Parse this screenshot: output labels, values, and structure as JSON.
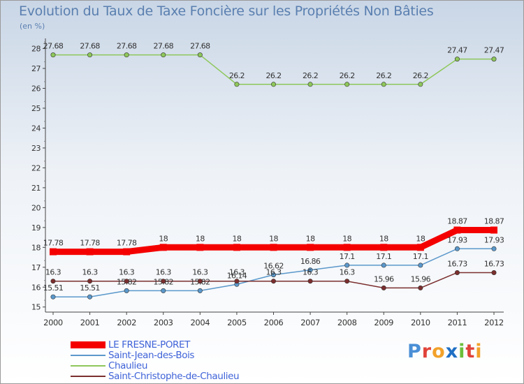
{
  "chart": {
    "title": "Evolution du Taux de Taxe Foncière sur les Propriétés Non Bâties",
    "unit_label": "(en %)"
  },
  "brand": {
    "name": "Proxiti"
  },
  "chart_data": {
    "type": "line",
    "title": "Evolution du Taux de Taxe Foncière sur les Propriétés Non Bâties",
    "ylabel": "(en %)",
    "xlabel": "",
    "x": [
      "2000",
      "2001",
      "2002",
      "2003",
      "2004",
      "2005",
      "2006",
      "2007",
      "2008",
      "2009",
      "2010",
      "2011",
      "2012"
    ],
    "y_ticks": [
      15,
      16,
      17,
      18,
      19,
      20,
      21,
      22,
      23,
      24,
      25,
      26,
      27,
      28
    ],
    "ylim": [
      14.85,
      28.3
    ],
    "grid": false,
    "legend_position": "bottom-left",
    "series": [
      {
        "name": "Chaulieu",
        "color": "#8ec75a",
        "line_weight": "thin",
        "values": [
          27.68,
          27.68,
          27.68,
          27.68,
          27.68,
          26.2,
          26.2,
          26.2,
          26.2,
          26.2,
          26.2,
          27.47,
          27.47
        ],
        "labels": [
          "27.68",
          "27.68",
          "27.68",
          "27.68",
          "27.68",
          "26.2",
          "26.2",
          "26.2",
          "26.2",
          "26.2",
          "26.2",
          "27.47",
          "27.47"
        ]
      },
      {
        "name": "LE FRESNE-PORET",
        "color": "#f50000",
        "line_weight": "thick",
        "values": [
          17.78,
          17.78,
          17.78,
          18,
          18,
          18,
          18,
          18,
          18,
          18,
          18,
          18.87,
          18.87
        ],
        "labels": [
          "17.78",
          "17.78",
          "17.78",
          "18",
          "18",
          "18",
          "18",
          "18",
          "18",
          "18",
          "18",
          "18.87",
          "18.87"
        ]
      },
      {
        "name": "Saint-Jean-des-Bois",
        "color": "#5b98cb",
        "line_weight": "thin",
        "values": [
          15.51,
          15.51,
          15.82,
          15.82,
          15.82,
          16.14,
          16.62,
          16.86,
          17.1,
          17.1,
          17.1,
          17.93,
          17.93
        ],
        "labels": [
          "15.51",
          "15.51",
          "15.82",
          "15.82",
          "15.82",
          "16.14",
          "16.62",
          "16.86",
          "17.1",
          "17.1",
          "17.1",
          "17.93",
          "17.93"
        ]
      },
      {
        "name": "Saint-Christophe-de-Chaulieu",
        "color": "#7b2e2e",
        "line_weight": "thin",
        "values": [
          16.3,
          16.3,
          16.3,
          16.3,
          16.3,
          16.3,
          16.3,
          16.3,
          16.3,
          15.96,
          15.96,
          16.73,
          16.73
        ],
        "labels": [
          "16.3",
          "16.3",
          "16.3",
          "16.3",
          "16.3",
          "16.3",
          "16.3",
          "16.3",
          "16.3",
          "15.96",
          "15.96",
          "16.73",
          "16.73"
        ]
      }
    ],
    "legend_order": [
      "LE FRESNE-PORET",
      "Saint-Jean-des-Bois",
      "Chaulieu",
      "Saint-Christophe-de-Chaulieu"
    ]
  }
}
